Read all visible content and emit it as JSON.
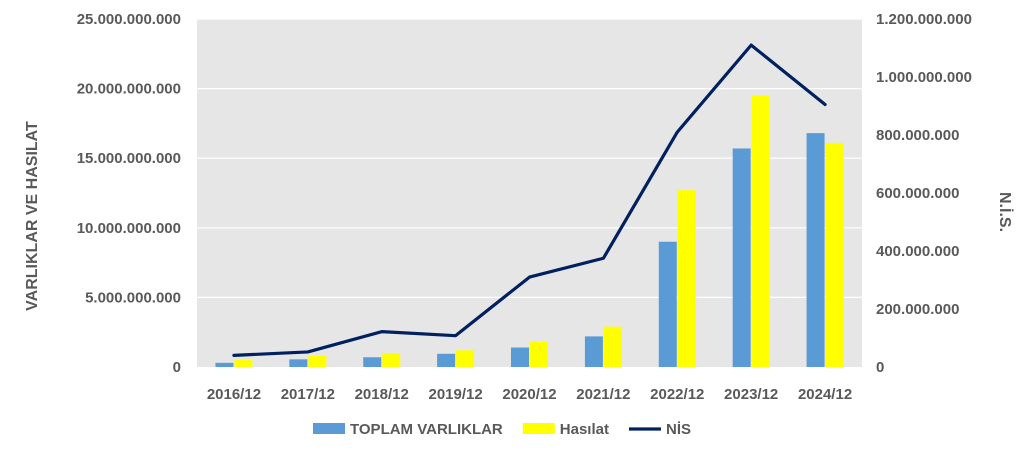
{
  "chart_data": {
    "type": "bar",
    "categories": [
      "2016/12",
      "2017/12",
      "2018/12",
      "2019/12",
      "2020/12",
      "2021/12",
      "2022/12",
      "2023/12",
      "2024/12"
    ],
    "series": [
      {
        "name": "TOPLAM VARLIKLAR",
        "axis": "left",
        "type": "bar",
        "color": "#5B9BD5",
        "values": [
          300000000,
          550000000,
          700000000,
          950000000,
          1400000000,
          2200000000,
          9000000000,
          15700000000,
          16800000000
        ]
      },
      {
        "name": "Hasılat",
        "axis": "left",
        "type": "bar",
        "color": "#FFFF00",
        "values": [
          500000000,
          800000000,
          1000000000,
          1200000000,
          1800000000,
          2900000000,
          12700000000,
          19500000000,
          16100000000
        ]
      },
      {
        "name": "NİS",
        "axis": "right",
        "type": "line",
        "color": "#002060",
        "values": [
          40000000,
          52000000,
          122000000,
          108000000,
          310000000,
          375000000,
          810000000,
          1110000000,
          905000000
        ]
      }
    ],
    "ylabel": "VARLIKLAR VE HASILAT",
    "y2label": "N.İ.S.",
    "ylim": [
      0,
      25000000000
    ],
    "y2lim": [
      0,
      1200000000
    ],
    "yticks": [
      "0",
      "5.000.000.000",
      "10.000.000.000",
      "15.000.000.000",
      "20.000.000.000",
      "25.000.000.000"
    ],
    "y2ticks": [
      "0",
      "200.000.000",
      "400.000.000",
      "600.000.000",
      "800.000.000",
      "1.000.000.000",
      "1.200.000.000"
    ],
    "grid": true,
    "legend": "bottom",
    "plot_background": "#E7E6E6",
    "grid_color": "#FFFFFF"
  }
}
